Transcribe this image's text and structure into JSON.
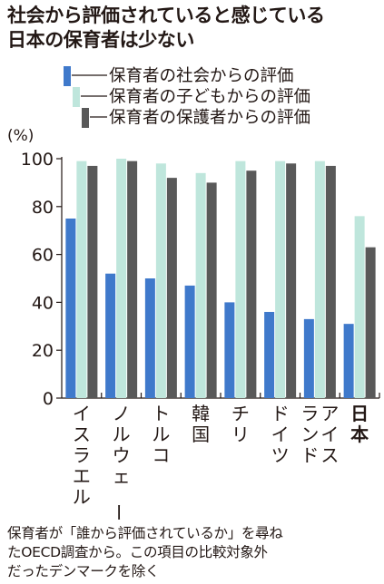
{
  "title_lines": [
    "社会から評価されていると感じている",
    "日本の保育者は少ない"
  ],
  "footnote_lines": [
    "保育者が「誰から評価されているか」を尋ね",
    "たOECD調査から。この項目の比較対象外",
    "だったデンマークを除く"
  ],
  "chart_data": {
    "type": "bar",
    "unit_label": "(%)",
    "categories": [
      "イスラエル",
      "ノルウェー",
      "トルコ",
      "韓国",
      "チリ",
      "ドイツ",
      "アイスランド",
      "日本"
    ],
    "category_columns": [
      [
        "イスラエル"
      ],
      [
        "ノルウェー"
      ],
      [
        "トルコ"
      ],
      [
        "韓国"
      ],
      [
        "チリ"
      ],
      [
        "ドイツ"
      ],
      [
        "アイス",
        "ランド"
      ],
      [
        "日本"
      ]
    ],
    "highlight_category": "日本",
    "ylim": [
      0,
      100
    ],
    "yticks": [
      0,
      20,
      40,
      60,
      80,
      100
    ],
    "grid": false,
    "legend_position": "top",
    "series": [
      {
        "name": "保育者の社会からの評価",
        "color": "#3f79cb",
        "values": [
          75,
          52,
          50,
          47,
          40,
          36,
          33,
          31
        ]
      },
      {
        "name": "保育者の子どもからの評価",
        "color": "#bfe6dc",
        "values": [
          99,
          100,
          98,
          94,
          99,
          99,
          99,
          76
        ]
      },
      {
        "name": "保育者の保護者からの評価",
        "color": "#595959",
        "values": [
          97,
          99,
          92,
          90,
          95,
          98,
          97,
          63
        ]
      }
    ]
  }
}
